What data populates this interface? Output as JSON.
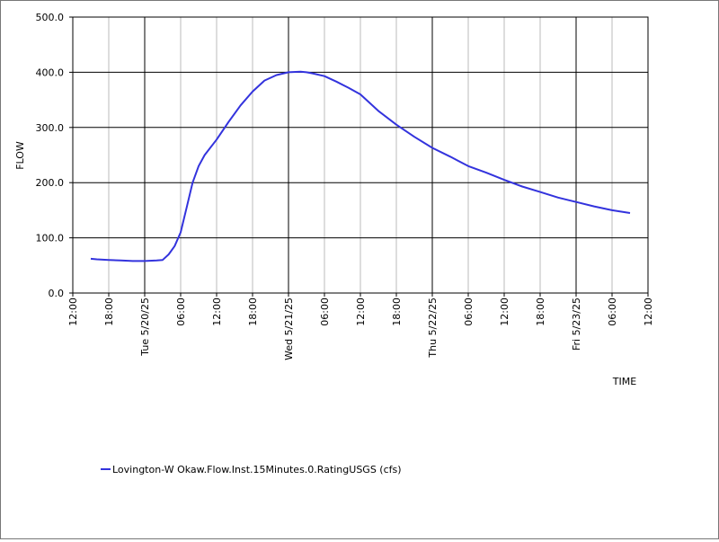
{
  "chart_data": {
    "type": "line",
    "title": "",
    "xlabel": "TIME",
    "ylabel": "FLOW",
    "ylim": [
      0,
      500
    ],
    "yticks": [
      "0.0",
      "100.0",
      "200.0",
      "300.0",
      "400.0",
      "500.0"
    ],
    "xlim": [
      "2025-05-19T12:00",
      "2025-05-23T12:00"
    ],
    "xticks": [
      "12:00",
      "18:00",
      "Tue 5/20/25",
      "06:00",
      "12:00",
      "18:00",
      "Wed 5/21/25",
      "06:00",
      "12:00",
      "18:00",
      "Thu 5/22/25",
      "06:00",
      "12:00",
      "18:00",
      "Fri 5/23/25",
      "06:00",
      "12:00"
    ],
    "grid": true,
    "legend_position": "bottom-left",
    "series": [
      {
        "name": "Lovington-W Okaw.Flow.Inst.15Minutes.0.RatingUSGS (cfs)",
        "color": "#3333dd",
        "x": [
          "2025-05-19T15:00",
          "2025-05-19T16:00",
          "2025-05-19T18:00",
          "2025-05-19T20:00",
          "2025-05-19T22:00",
          "2025-05-20T00:00",
          "2025-05-20T02:00",
          "2025-05-20T03:00",
          "2025-05-20T04:00",
          "2025-05-20T05:00",
          "2025-05-20T06:00",
          "2025-05-20T07:00",
          "2025-05-20T08:00",
          "2025-05-20T09:00",
          "2025-05-20T10:00",
          "2025-05-20T12:00",
          "2025-05-20T14:00",
          "2025-05-20T16:00",
          "2025-05-20T18:00",
          "2025-05-20T20:00",
          "2025-05-20T22:00",
          "2025-05-21T00:00",
          "2025-05-21T02:00",
          "2025-05-21T03:00",
          "2025-05-21T04:00",
          "2025-05-21T06:00",
          "2025-05-21T08:00",
          "2025-05-21T10:00",
          "2025-05-21T12:00",
          "2025-05-21T15:00",
          "2025-05-21T18:00",
          "2025-05-21T21:00",
          "2025-05-22T00:00",
          "2025-05-22T03:00",
          "2025-05-22T06:00",
          "2025-05-22T09:00",
          "2025-05-22T12:00",
          "2025-05-22T15:00",
          "2025-05-22T18:00",
          "2025-05-22T21:00",
          "2025-05-23T00:00",
          "2025-05-23T03:00",
          "2025-05-23T06:00",
          "2025-05-23T09:00"
        ],
        "y": [
          62,
          61,
          60,
          59,
          58,
          58,
          59,
          60,
          70,
          85,
          110,
          155,
          200,
          230,
          250,
          278,
          310,
          340,
          365,
          385,
          395,
          400,
          401,
          400,
          398,
          393,
          383,
          372,
          360,
          330,
          305,
          283,
          263,
          247,
          230,
          218,
          205,
          193,
          183,
          173,
          165,
          157,
          150,
          145
        ]
      }
    ]
  }
}
